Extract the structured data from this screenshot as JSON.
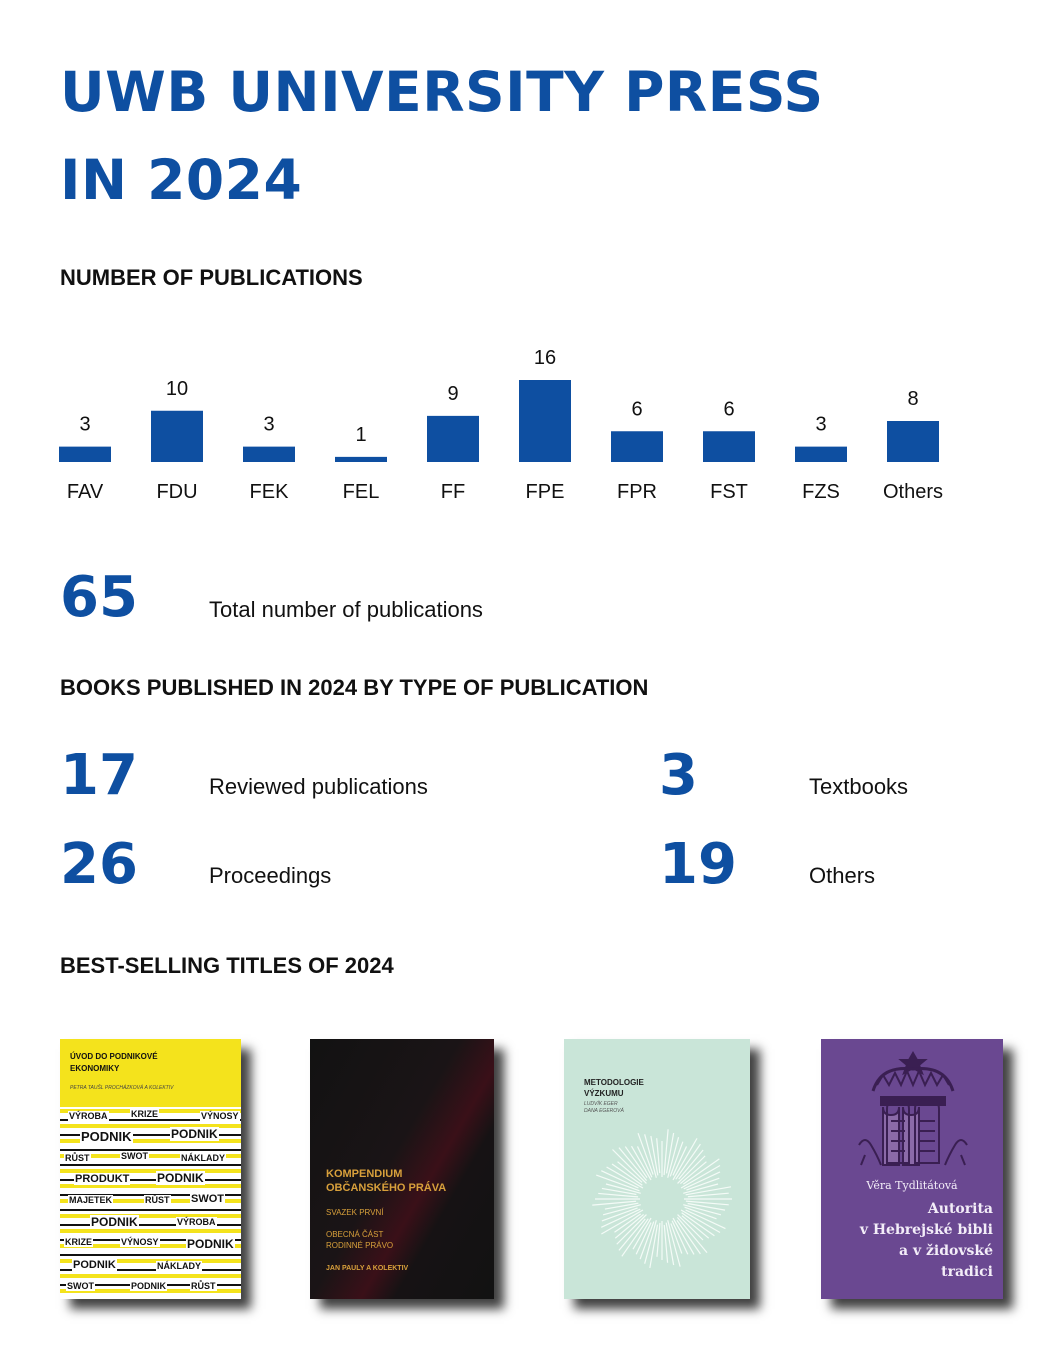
{
  "header": {
    "title_line1": "UWB UNIVERSITY PRESS",
    "title_line2": "IN 2024"
  },
  "publications_section": {
    "heading": "NUMBER OF PUBLICATIONS"
  },
  "colors": {
    "accent": "#0e4fa1",
    "text": "#111111"
  },
  "chart_data": {
    "type": "bar",
    "title": "NUMBER OF PUBLICATIONS",
    "categories": [
      "FAV",
      "FDU",
      "FEK",
      "FEL",
      "FF",
      "FPE",
      "FPR",
      "FST",
      "FZS",
      "Others"
    ],
    "values": [
      3,
      10,
      3,
      1,
      9,
      16,
      6,
      6,
      3,
      8
    ],
    "xlabel": "",
    "ylabel": "",
    "ylim": [
      0,
      16
    ],
    "grid": false,
    "data_labels": true,
    "color": "#0e4fa1"
  },
  "total": {
    "value": "65",
    "label": "Total number of publications"
  },
  "types_section": {
    "heading": "BOOKS PUBLISHED IN 2024 BY TYPE OF PUBLICATION",
    "items": [
      {
        "value": "17",
        "label": "Reviewed publications"
      },
      {
        "value": "3",
        "label": "Textbooks"
      },
      {
        "value": "26",
        "label": "Proceedings"
      },
      {
        "value": "19",
        "label": "Others"
      }
    ]
  },
  "bestsellers_section": {
    "heading": "BEST-SELLING TITLES OF 2024",
    "books": [
      {
        "title": "ÚVOD DO PODNIKOVÉ EKONOMIKY",
        "authors": "PETRA TAUŠL PROCHÁZKOVÁ A KOLEKTIV",
        "color": "#f4e31c"
      },
      {
        "title": "KOMPENDIUM OBČANSKÉHO PRÁVA",
        "volume": "SVAZEK PRVNÍ",
        "subtitle1": "OBECNÁ ČÁST",
        "subtitle2": "RODINNÉ PRÁVO",
        "authors": "JAN PAULY A KOLEKTIV",
        "color": "#d8a03b"
      },
      {
        "title": "METODOLOGIE VÝZKUMU",
        "author1": "LUDVÍK EGER",
        "author2": "DANA EGEROVÁ",
        "color": "#c9e5d8"
      },
      {
        "author": "Věra Tydlitátová",
        "title_line1": "Autorita",
        "title_line2": "v Hebrejské bibli",
        "title_line3": "a v židovské",
        "title_line4": "tradici",
        "color": "#6a4891"
      }
    ]
  }
}
